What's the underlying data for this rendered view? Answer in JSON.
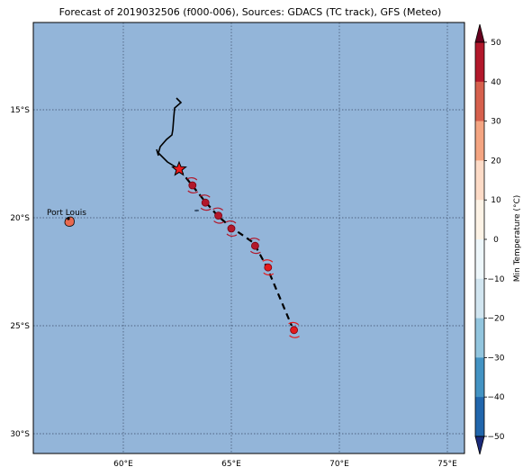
{
  "title": "Forecast of 2019032506 (f000-006), Sources: GDACS (TC track), GFS (Meteo)",
  "map": {
    "ocean_color": "#93b5d9",
    "lon_ticks": [
      {
        "label": "60°E",
        "value": 60
      },
      {
        "label": "65°E",
        "value": 65
      },
      {
        "label": "70°E",
        "value": 70
      },
      {
        "label": "75°E",
        "value": 75
      }
    ],
    "lat_ticks": [
      {
        "label": "15°S",
        "value": -15
      },
      {
        "label": "20°S",
        "value": -20
      },
      {
        "label": "25°S",
        "value": -25
      },
      {
        "label": "30°S",
        "value": -30
      }
    ],
    "place_label": "Port Louis"
  },
  "colorbar": {
    "label": "Min Temperature (°C)",
    "ticks": [
      "50",
      "40",
      "30",
      "20",
      "10",
      "0",
      "−10",
      "−20",
      "−30",
      "−40",
      "−50"
    ],
    "colors": [
      "#67001f",
      "#b2182b",
      "#d6604d",
      "#f4a582",
      "#fddbc7",
      "#fdf3e6",
      "#eef7fb",
      "#d1e5f0",
      "#92c5de",
      "#4393c3",
      "#2166ac",
      "#1a2a7a"
    ]
  },
  "track": {
    "past_color": "#000000",
    "current_marker": "red-star",
    "forecast_points": [
      {
        "lon": 63.2,
        "lat": -18.5,
        "color": "#b2182b"
      },
      {
        "lon": 63.8,
        "lat": -19.3,
        "color": "#b2182b"
      },
      {
        "lon": 64.4,
        "lat": -19.9,
        "color": "#b2182b"
      },
      {
        "lon": 65.0,
        "lat": -20.5,
        "color": "#b2182b"
      },
      {
        "lon": 66.1,
        "lat": -21.3,
        "color": "#b2182b"
      },
      {
        "lon": 66.7,
        "lat": -22.3,
        "color": "#e31a1c"
      },
      {
        "lon": 67.9,
        "lat": -25.2,
        "color": "#e31a1c"
      }
    ]
  }
}
